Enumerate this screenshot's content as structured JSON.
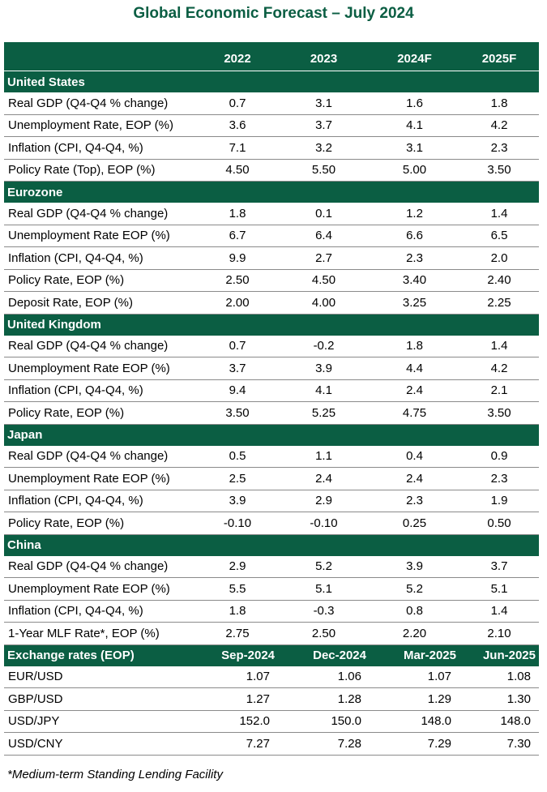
{
  "title": "Global Economic Forecast – July 2024",
  "header": {
    "c1": "2022",
    "c2": "2023",
    "c3": "2024F",
    "c4": "2025F"
  },
  "sections": [
    {
      "name": "United States",
      "rows": [
        {
          "label": "Real GDP (Q4-Q4 % change)",
          "v": [
            "0.7",
            "3.1",
            "1.6",
            "1.8"
          ]
        },
        {
          "label": "Unemployment Rate, EOP (%)",
          "v": [
            "3.6",
            "3.7",
            "4.1",
            "4.2"
          ]
        },
        {
          "label": "Inflation (CPI, Q4-Q4, %)",
          "v": [
            "7.1",
            "3.2",
            "3.1",
            "2.3"
          ]
        },
        {
          "label": "Policy Rate (Top), EOP (%)",
          "v": [
            "4.50",
            "5.50",
            "5.00",
            "3.50"
          ]
        }
      ]
    },
    {
      "name": "Eurozone",
      "rows": [
        {
          "label": "Real GDP (Q4-Q4 % change)",
          "v": [
            "1.8",
            "0.1",
            "1.2",
            "1.4"
          ]
        },
        {
          "label": "Unemployment Rate EOP (%)",
          "v": [
            "6.7",
            "6.4",
            "6.6",
            "6.5"
          ]
        },
        {
          "label": "Inflation (CPI, Q4-Q4, %)",
          "v": [
            "9.9",
            "2.7",
            "2.3",
            "2.0"
          ]
        },
        {
          "label": "Policy Rate, EOP (%)",
          "v": [
            "2.50",
            "4.50",
            "3.40",
            "2.40"
          ]
        },
        {
          "label": "Deposit Rate, EOP (%)",
          "v": [
            "2.00",
            "4.00",
            "3.25",
            "2.25"
          ]
        }
      ]
    },
    {
      "name": "United Kingdom",
      "rows": [
        {
          "label": "Real GDP (Q4-Q4 % change)",
          "v": [
            "0.7",
            "-0.2",
            "1.8",
            "1.4"
          ]
        },
        {
          "label": "Unemployment Rate EOP (%)",
          "v": [
            "3.7",
            "3.9",
            "4.4",
            "4.2"
          ]
        },
        {
          "label": "Inflation (CPI, Q4-Q4, %)",
          "v": [
            "9.4",
            "4.1",
            "2.4",
            "2.1"
          ]
        },
        {
          "label": "Policy Rate, EOP (%)",
          "v": [
            "3.50",
            "5.25",
            "4.75",
            "3.50"
          ]
        }
      ]
    },
    {
      "name": "Japan",
      "rows": [
        {
          "label": "Real GDP (Q4-Q4 % change)",
          "v": [
            "0.5",
            "1.1",
            "0.4",
            "0.9"
          ]
        },
        {
          "label": "Unemployment Rate EOP (%)",
          "v": [
            "2.5",
            "2.4",
            "2.4",
            "2.3"
          ]
        },
        {
          "label": "Inflation (CPI, Q4-Q4, %)",
          "v": [
            "3.9",
            "2.9",
            "2.3",
            "1.9"
          ]
        },
        {
          "label": "Policy Rate, EOP (%)",
          "v": [
            "-0.10",
            "-0.10",
            "0.25",
            "0.50"
          ]
        }
      ]
    },
    {
      "name": "China",
      "rows": [
        {
          "label": "Real GDP (Q4-Q4 % change)",
          "v": [
            "2.9",
            "5.2",
            "3.9",
            "3.7"
          ]
        },
        {
          "label": "Unemployment Rate EOP (%)",
          "v": [
            "5.5",
            "5.1",
            "5.2",
            "5.1"
          ]
        },
        {
          "label": "Inflation (CPI, Q4-Q4, %)",
          "v": [
            "1.8",
            "-0.3",
            "0.8",
            "1.4"
          ]
        },
        {
          "label": "1-Year MLF Rate*, EOP (%)",
          "v": [
            "2.75",
            "2.50",
            "2.20",
            "2.10"
          ]
        }
      ]
    }
  ],
  "fx": {
    "name": "Exchange rates (EOP)",
    "cols": [
      "Sep-2024",
      "Dec-2024",
      "Mar-2025",
      "Jun-2025"
    ],
    "rows": [
      {
        "label": "EUR/USD",
        "v": [
          "1.07",
          "1.06",
          "1.07",
          "1.08"
        ]
      },
      {
        "label": "GBP/USD",
        "v": [
          "1.27",
          "1.28",
          "1.29",
          "1.30"
        ]
      },
      {
        "label": "USD/JPY",
        "v": [
          "152.0",
          "150.0",
          "148.0",
          "148.0"
        ]
      },
      {
        "label": "USD/CNY",
        "v": [
          "7.27",
          "7.28",
          "7.29",
          "7.30"
        ]
      }
    ]
  },
  "footnote": "*Medium-term Standing Lending Facility",
  "colors": {
    "brand_green": "#0b5e43"
  }
}
